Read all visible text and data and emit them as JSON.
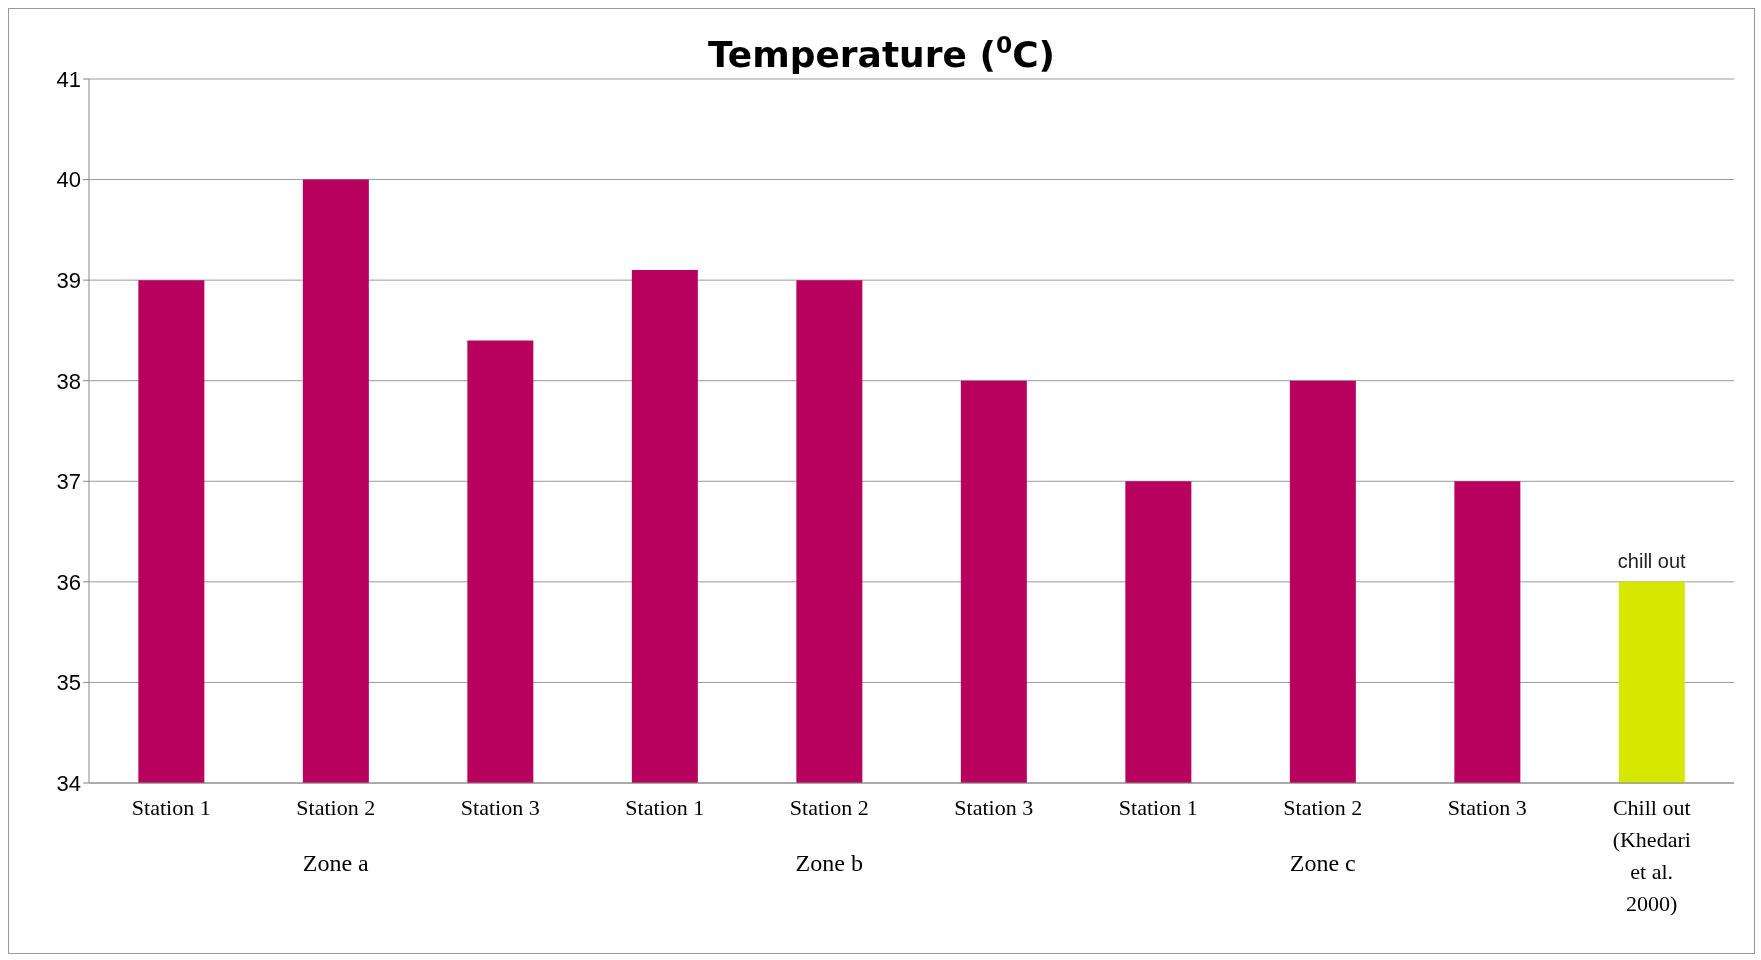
{
  "chart_data": {
    "type": "bar",
    "title": "Temperature  ($^{0}$C)",
    "categories": [
      "Station 1",
      "Station 2",
      "Station 3",
      "Station 1",
      "Station 2",
      "Station 3",
      "Station 1",
      "Station 2",
      "Station 3",
      "Chill out (Khedari et al. 2000)"
    ],
    "values": [
      39,
      40,
      38.4,
      39.1,
      39,
      38,
      37,
      38,
      37,
      36
    ],
    "colors": [
      "#b8005e",
      "#b8005e",
      "#b8005e",
      "#b8005e",
      "#b8005e",
      "#b8005e",
      "#b8005e",
      "#b8005e",
      "#b8005e",
      "#d6e800"
    ],
    "ylim": [
      34,
      41
    ],
    "yticks": [
      34,
      35,
      36,
      37,
      38,
      39,
      40,
      41
    ],
    "grid": "y",
    "annotations": [
      "Zone a",
      "Zone b",
      "Zone c",
      {
        "text": "chill out",
        "x": "Chill out (Khedari et al. 2000)",
        "y": 36
      }
    ]
  }
}
